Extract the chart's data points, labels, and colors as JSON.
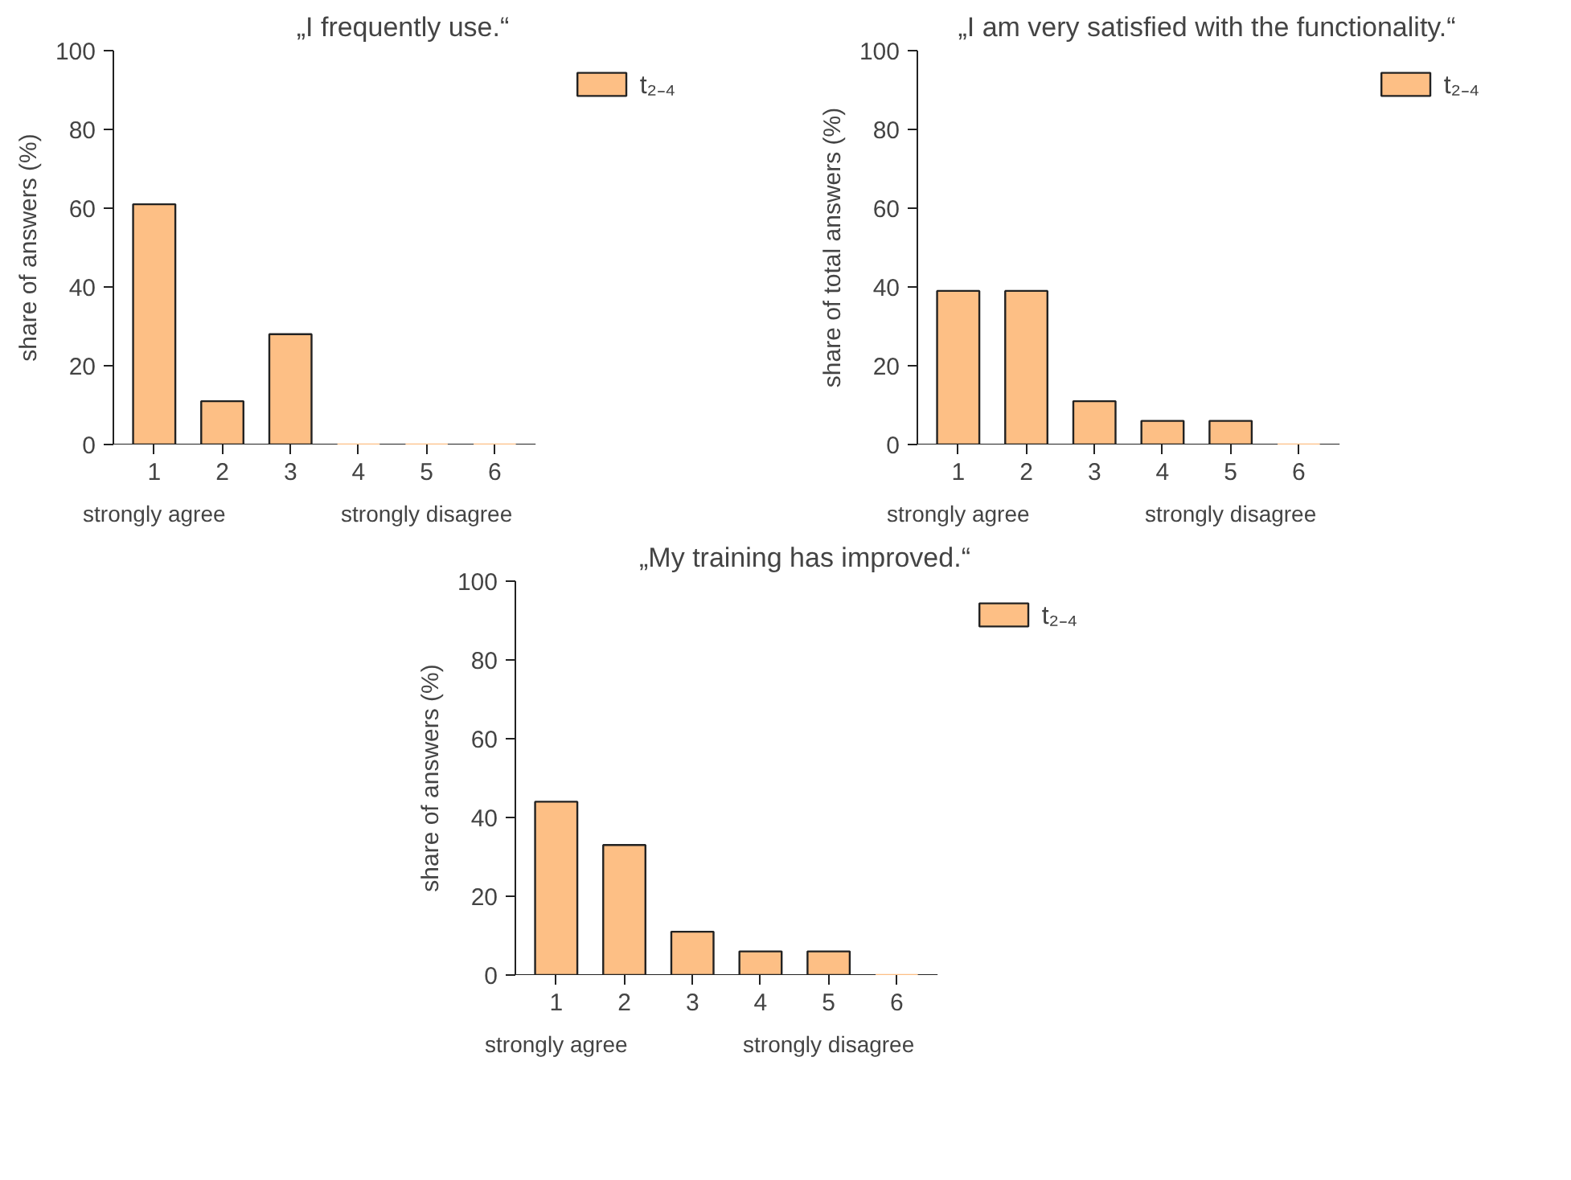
{
  "chart_data": [
    {
      "type": "bar",
      "title": "„I frequently use.“",
      "ylabel": "share of answers (%)",
      "categories": [
        "1",
        "2",
        "3",
        "4",
        "5",
        "6"
      ],
      "series": [
        {
          "name": "t₂₋₄",
          "color": "#fdbf85",
          "values": [
            61,
            11,
            28,
            0,
            0,
            0
          ]
        }
      ],
      "ylim": [
        0,
        100
      ],
      "yticks": [
        0,
        20,
        40,
        60,
        80,
        100
      ],
      "legend": "top right",
      "annotations": [
        "strongly agree",
        "strongly disagree"
      ]
    },
    {
      "type": "bar",
      "title": "„I am very satisfied with the functionality.“",
      "ylabel": "share of total answers (%)",
      "categories": [
        "1",
        "2",
        "3",
        "4",
        "5",
        "6"
      ],
      "series": [
        {
          "name": "t₂₋₄",
          "color": "#fdbf85",
          "values": [
            39,
            39,
            11,
            6,
            6,
            0
          ]
        }
      ],
      "ylim": [
        0,
        100
      ],
      "yticks": [
        0,
        20,
        40,
        60,
        80,
        100
      ],
      "legend": "top right",
      "annotations": [
        "strongly agree",
        "strongly disagree"
      ]
    },
    {
      "type": "bar",
      "title": "„My training has improved.“",
      "ylabel": "share of answers (%)",
      "categories": [
        "1",
        "2",
        "3",
        "4",
        "5",
        "6"
      ],
      "series": [
        {
          "name": "t₂₋₄",
          "color": "#fdbf85",
          "values": [
            44,
            33,
            11,
            6,
            6,
            0
          ]
        }
      ],
      "ylim": [
        0,
        100
      ],
      "yticks": [
        0,
        20,
        40,
        60,
        80,
        100
      ],
      "legend": "top right",
      "annotations": [
        "strongly agree",
        "strongly disagree"
      ]
    }
  ]
}
